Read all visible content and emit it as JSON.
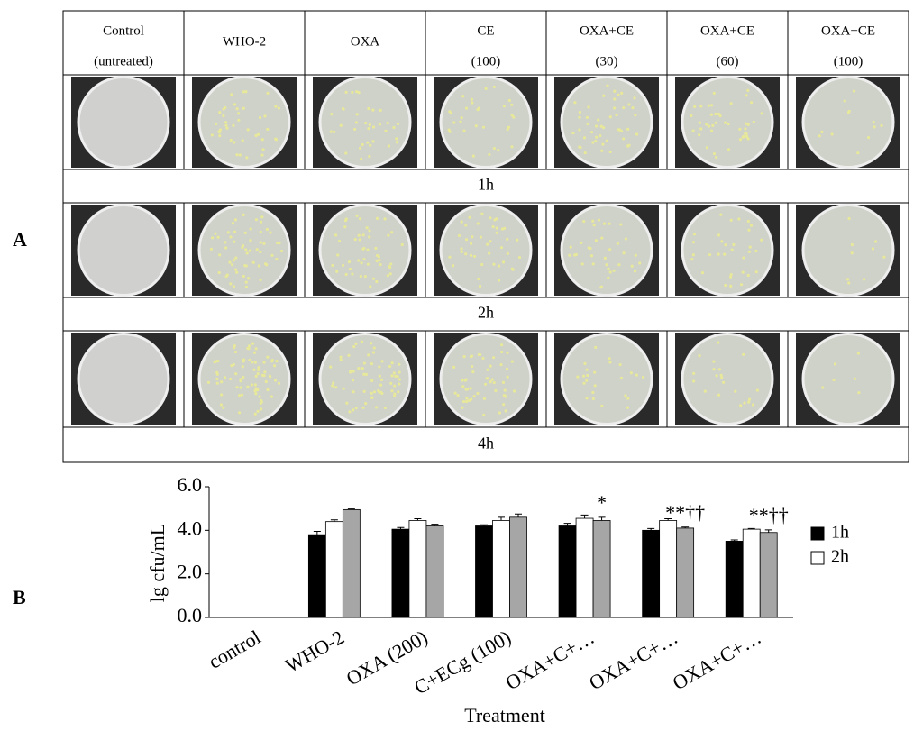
{
  "panel_a": {
    "label": "A",
    "columns": [
      [
        "Control",
        "(untreated)"
      ],
      [
        "WHO-2"
      ],
      [
        "OXA"
      ],
      [
        "CE",
        "(100)"
      ],
      [
        "OXA+CE",
        "(30)"
      ],
      [
        "OXA+CE",
        "(60)"
      ],
      [
        "OXA+CE",
        "(100)"
      ]
    ],
    "times": [
      "1h",
      "2h",
      "4h"
    ]
  },
  "panel_b": {
    "label": "B"
  },
  "chart_data": {
    "type": "bar",
    "ylabel": "lg cfu/mL",
    "xlabel": "Treatment",
    "categories": [
      "control",
      "WHO-2",
      "OXA (200)",
      "C+ECg (100)",
      "OXA+C+…",
      "OXA+C+…",
      "OXA+C+…"
    ],
    "series": [
      {
        "name": "1h",
        "color": "#000000",
        "values": [
          0,
          3.8,
          4.05,
          4.2,
          4.2,
          4.0,
          3.5
        ],
        "errors": [
          0,
          0.15,
          0.08,
          0.05,
          0.12,
          0.08,
          0.06
        ]
      },
      {
        "name": "2h",
        "color": "#ffffff",
        "values": [
          0,
          4.4,
          4.45,
          4.45,
          4.55,
          4.45,
          4.05
        ],
        "errors": [
          0,
          0.08,
          0.08,
          0.15,
          0.15,
          0.08,
          0.03
        ]
      },
      {
        "color": "#a6a6a6",
        "values": [
          0,
          4.95,
          4.2,
          4.6,
          4.45,
          4.1,
          3.9
        ],
        "errors": [
          0,
          0.03,
          0.08,
          0.15,
          0.15,
          0.05,
          0.12
        ]
      }
    ],
    "annotations": [
      "*",
      "**††",
      "**††"
    ],
    "ylim": [
      0,
      6
    ],
    "yticks": [
      {
        "value": 0,
        "label": "0.0"
      },
      {
        "value": 2,
        "label": "2.0"
      },
      {
        "value": 4,
        "label": "4.0"
      },
      {
        "value": 6,
        "label": "6.0"
      }
    ]
  }
}
